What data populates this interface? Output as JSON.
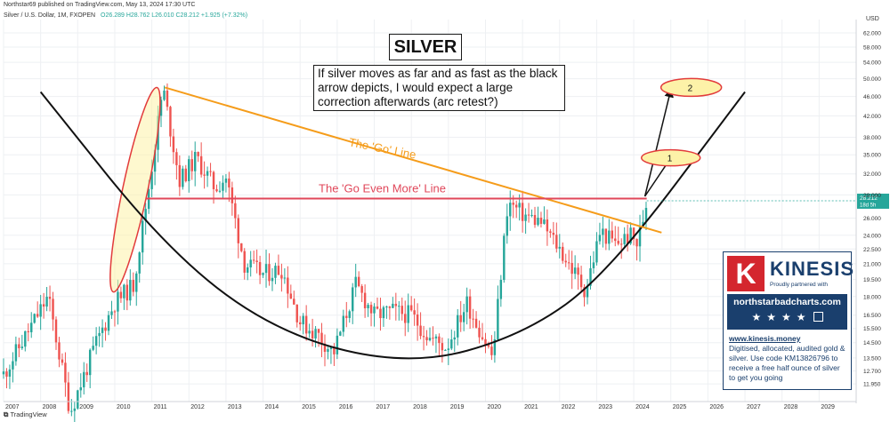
{
  "header": {
    "publisher": "Northstar69 published on TradingView.com, May 13, 2024 17:30 UTC",
    "symbol": "Silver / U.S. Dollar, 1M, FXOPEN",
    "ohlc": "O26.289 H28.762 L26.010 C28.212 +1.925 (+7.32%)",
    "currency": "USD"
  },
  "annotations": {
    "title": "SILVER",
    "note": "If silver moves as far and as fast as the black arrow depicts, I would expect a large correction afterwards (arc retest?)",
    "go_line": "The 'Go' Line",
    "go_even_more_line": "The 'Go Even More' Line",
    "target_1": "1",
    "target_2": "2"
  },
  "price_tag": {
    "value": "28.212",
    "countdown": "18d 5h"
  },
  "ad": {
    "logo_letter": "K",
    "brand": "KINESIS",
    "partner": "Proudly partnered with",
    "site": "northstarbadcharts.com",
    "stars": "★★★★",
    "url": "www.kinesis.money",
    "copy": "Digitised, allocated, audited gold & silver. Use code KM13826796 to receive a free half ounce of silver to get you going"
  },
  "footer": "TradingView",
  "colors": {
    "up": "#26a69a",
    "down": "#ef5350",
    "go_line": "#f59c1a",
    "go_even_more_line": "#e0475a",
    "arc": "#111111",
    "ellipse_fill": "#fdf2a8",
    "ellipse_stroke": "#e23b3b"
  },
  "chart_data": {
    "type": "candlestick",
    "title": "Silver / U.S. Dollar, 1M, FXOPEN",
    "xlabel": "",
    "ylabel": "USD",
    "scale": "log",
    "x_range": [
      2007,
      2030
    ],
    "ylim": [
      11.0,
      66.0
    ],
    "x_ticks": [
      "2007",
      "2008",
      "2009",
      "2010",
      "2011",
      "2012",
      "2013",
      "2014",
      "2015",
      "2016",
      "2017",
      "2018",
      "2019",
      "2020",
      "2021",
      "2022",
      "2023",
      "2024",
      "2025",
      "2026",
      "2027",
      "2028",
      "2029"
    ],
    "y_ticks": [
      "62.000",
      "58.000",
      "54.000",
      "50.000",
      "46.000",
      "42.000",
      "38.000",
      "35.000",
      "32.000",
      "29.000",
      "26.000",
      "24.000",
      "22.500",
      "21.000",
      "19.500",
      "18.000",
      "16.500",
      "15.500",
      "14.500",
      "13.500",
      "12.700",
      "11.950"
    ],
    "close_series": {
      "x": [
        2007.0,
        2008.2,
        2008.8,
        2009.5,
        2010.0,
        2010.5,
        2010.9,
        2011.3,
        2011.75,
        2012.2,
        2012.7,
        2013.0,
        2013.5,
        2014.0,
        2014.5,
        2015.0,
        2015.5,
        2015.9,
        2016.5,
        2017.0,
        2017.5,
        2018.0,
        2018.5,
        2018.95,
        2019.5,
        2020.2,
        2020.6,
        2021.0,
        2021.5,
        2022.0,
        2022.7,
        2023.1,
        2023.5,
        2023.9,
        2024.1,
        2024.35
      ],
      "y": [
        12.5,
        18.0,
        10.5,
        14.5,
        17.5,
        19.0,
        29.5,
        48.0,
        31.0,
        34.5,
        30.0,
        31.5,
        21.0,
        20.0,
        20.5,
        16.0,
        15.0,
        13.8,
        19.0,
        16.5,
        16.8,
        16.5,
        14.8,
        14.2,
        17.5,
        13.5,
        28.0,
        26.5,
        25.5,
        22.5,
        18.5,
        24.5,
        23.0,
        24.0,
        23.0,
        28.2
      ]
    },
    "overlays": {
      "go_line": {
        "x": [
          2011.35,
          2024.75
        ],
        "y": [
          48.0,
          24.3
        ]
      },
      "go_even_more_line": {
        "x": [
          2010.85,
          2024.35
        ],
        "y": [
          28.5,
          28.5
        ]
      },
      "arc": {
        "x": [
          2008.0,
          2011.5,
          2014.5,
          2018.0,
          2021.0,
          2023.3,
          2027.0
        ],
        "y": [
          47.0,
          22.0,
          15.0,
          13.0,
          15.0,
          20.0,
          47.0
        ]
      },
      "arrow_1": {
        "x": [
          2024.3,
          2025.0
        ],
        "y": [
          28.8,
          34.5
        ]
      },
      "arrow_2": {
        "x": [
          2024.3,
          2025.0
        ],
        "y": [
          28.8,
          47.5
        ]
      },
      "target_1": {
        "x": 2025.0,
        "y": 34.5
      },
      "target_2": {
        "x": 2025.55,
        "y": 48.0
      }
    }
  }
}
